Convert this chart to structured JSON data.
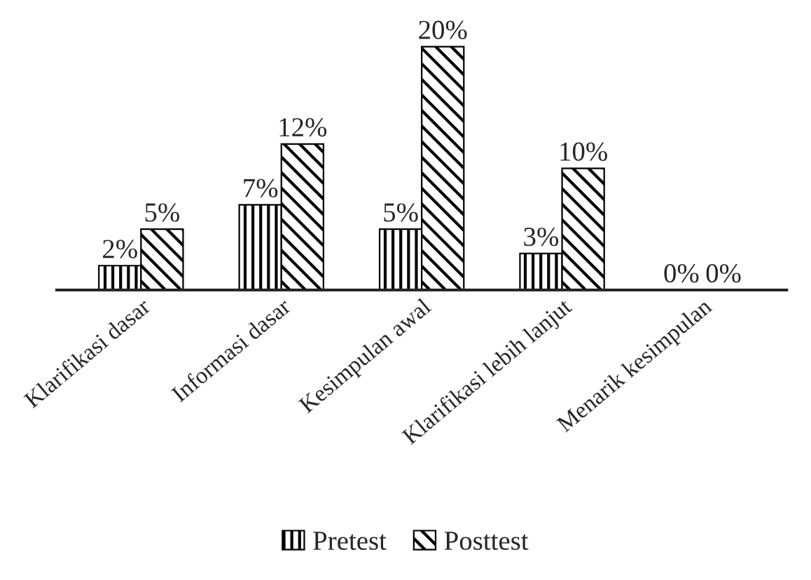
{
  "chart_data": {
    "type": "bar",
    "categories": [
      "Klarifikasi dasar",
      "Informasi dasar",
      "Kesimpulan awal",
      "Klarifikasi lebih lanjut",
      "Menarik kesimpulan"
    ],
    "series": [
      {
        "name": "Pretest",
        "color": "#000000",
        "values": [
          2,
          7,
          5,
          3,
          0
        ],
        "value_labels": [
          "2%",
          "7%",
          "5%",
          "3%",
          "0%"
        ]
      },
      {
        "name": "Posttest",
        "color": "#000000",
        "values": [
          5,
          12,
          20,
          10,
          0
        ],
        "value_labels": [
          "5%",
          "12%",
          "20%",
          "10%",
          "0%"
        ]
      }
    ],
    "legend": "bottom",
    "grid": false
  }
}
